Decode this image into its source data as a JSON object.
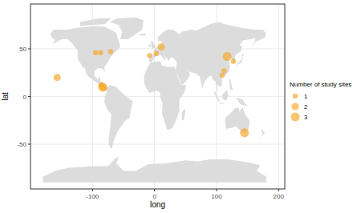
{
  "chart_data": {
    "type": "scatter",
    "x_label": "long",
    "y_label": "lat",
    "xlim": [
      -200,
      210
    ],
    "ylim": [
      -97,
      97
    ],
    "xticks": [
      -100,
      0,
      100,
      200
    ],
    "yticks": [
      -50,
      0,
      50
    ],
    "grid": true,
    "legend": "right",
    "color": "#f5a623",
    "x": [
      -157,
      -95,
      -87,
      -71,
      -84,
      -82,
      -86,
      -8,
      3,
      11,
      117,
      127,
      112,
      109,
      145
    ],
    "values": [
      20,
      46,
      46,
      47,
      10,
      9,
      12,
      43,
      45,
      52,
      42,
      37,
      27,
      22,
      -38
    ],
    "sizes": [
      2,
      1,
      1,
      1,
      3,
      2,
      1,
      1,
      1,
      2,
      3,
      1,
      1,
      1,
      3
    ],
    "size_legend": {
      "title": "Number of study sites",
      "values": [
        1,
        2,
        3
      ]
    }
  }
}
